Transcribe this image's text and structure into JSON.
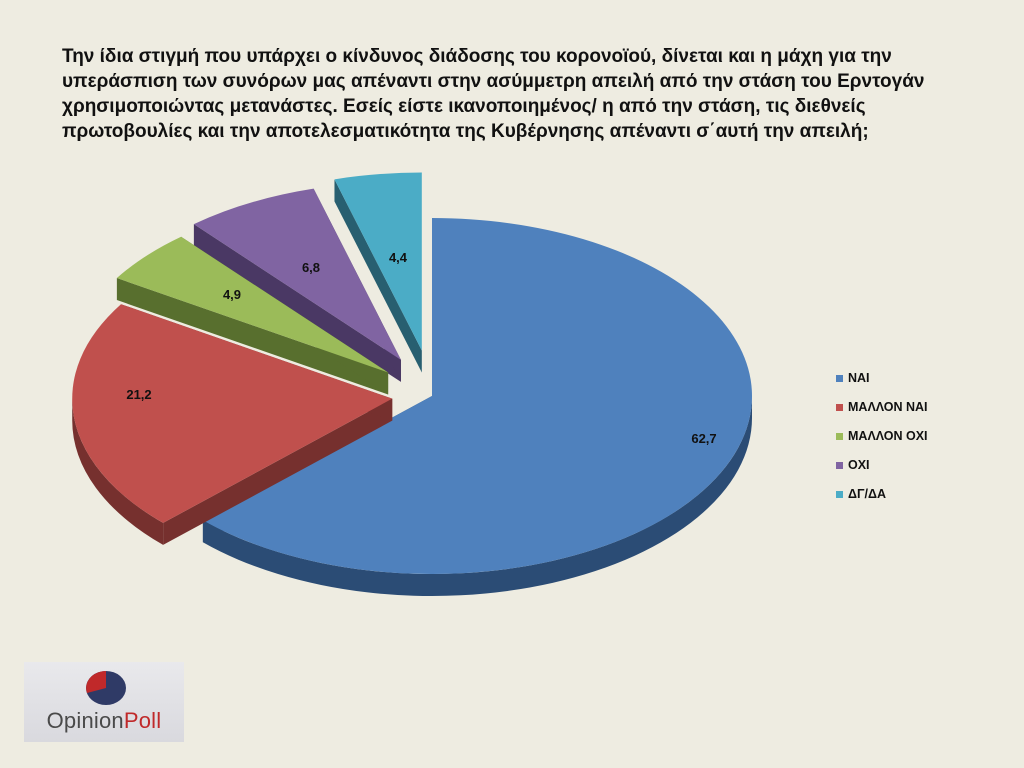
{
  "title": "Την ίδια στιγμή που υπάρχει ο κίνδυνος διάδοσης του κορονοϊού, δίνεται και η μάχη για την υπεράσπιση των συνόρων μας απέναντι στην ασύμμετρη απειλή από την στάση του Ερντογάν χρησιμοποιώντας μετανάστες. Εσείς είστε ικανοποιημένος/ η από την στάση, τις διεθνείς πρωτοβουλίες και την αποτελεσματικότητα της Κυβέρνησης απέναντι σ΄αυτή την απειλή;",
  "chart_data": {
    "type": "pie",
    "style": "3d-exploded",
    "legend_position": "right",
    "slices": [
      {
        "label": "ΝΑΙ",
        "value": 62.7,
        "display": "62,7",
        "color": "#4F81BD",
        "side_color": "#2B4C75"
      },
      {
        "label": "ΜΑΛΛΟΝ ΝΑΙ",
        "value": 21.2,
        "display": "21,2",
        "color": "#C0504D",
        "side_color": "#76302E"
      },
      {
        "label": "ΜΑΛΛΟΝ ΟΧΙ",
        "value": 4.9,
        "display": "4,9",
        "color": "#9BBB59",
        "side_color": "#586F2E"
      },
      {
        "label": "ΟΧΙ",
        "value": 6.8,
        "display": "6,8",
        "color": "#8064A2",
        "side_color": "#4A3864"
      },
      {
        "label": "ΔΓ/ΔΑ",
        "value": 4.4,
        "display": "4,4",
        "color": "#4BACC6",
        "side_color": "#285F70"
      }
    ]
  },
  "logo": {
    "part1": "Opinion",
    "part2": "Poll",
    "mark_colors": [
      "#c0292a",
      "#2f3a66"
    ]
  }
}
